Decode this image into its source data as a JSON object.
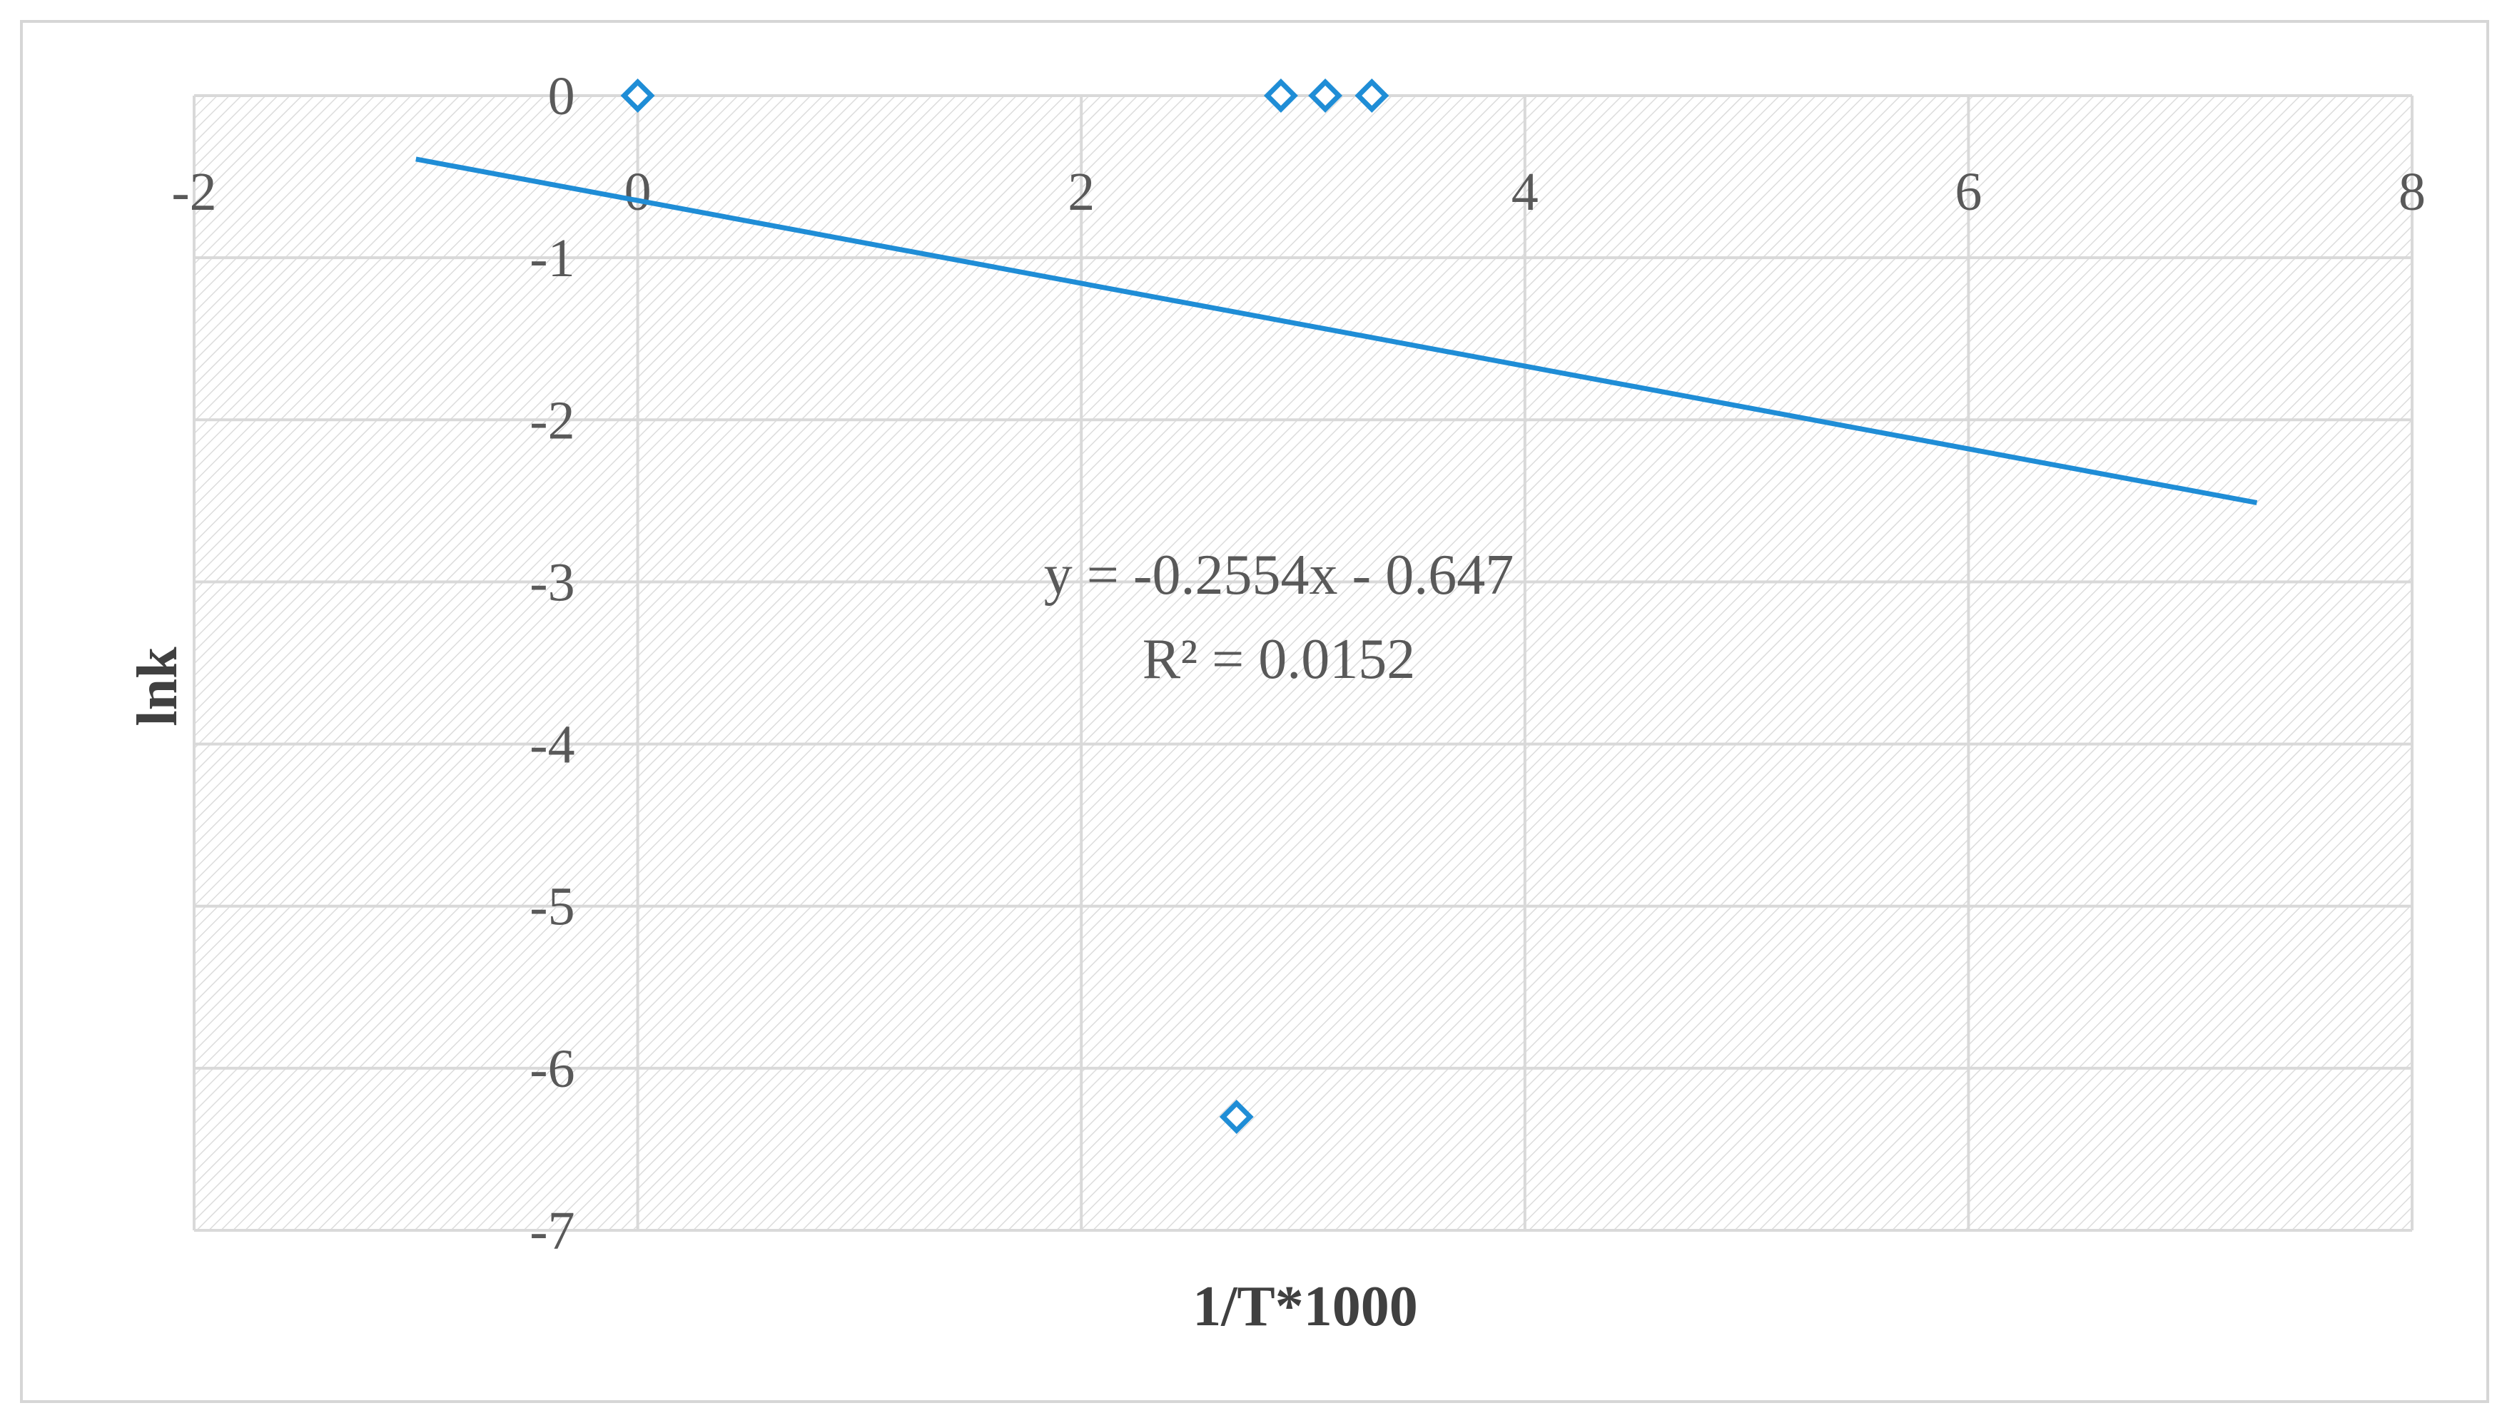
{
  "chart_data": {
    "type": "scatter",
    "xlabel": "1/T*1000",
    "ylabel": "lnk",
    "xlim": [
      -2,
      8
    ],
    "ylim": [
      -7,
      0
    ],
    "x_ticks": [
      "-2",
      "0",
      "2",
      "4",
      "6",
      "8"
    ],
    "y_ticks": [
      "0",
      "-1",
      "-2",
      "-3",
      "-4",
      "-5",
      "-6",
      "-7"
    ],
    "grid": true,
    "series": [
      {
        "marker": "diamond-open",
        "color": "#1f8dd6",
        "points": [
          {
            "x": 0.0,
            "y": 0.0
          },
          {
            "x": 2.9,
            "y": 0.0
          },
          {
            "x": 3.1,
            "y": 0.0
          },
          {
            "x": 3.31,
            "y": 0.0
          },
          {
            "x": 2.7,
            "y": -6.3
          }
        ]
      }
    ],
    "trendline": {
      "type": "linear",
      "slope": -0.2554,
      "intercept": -0.647,
      "x_range": [
        -1.0,
        7.3
      ],
      "color": "#1f8dd6"
    },
    "annotations": {
      "equation": "y = -0.2554x - 0.647",
      "r_squared": "R² = 0.0152"
    }
  }
}
